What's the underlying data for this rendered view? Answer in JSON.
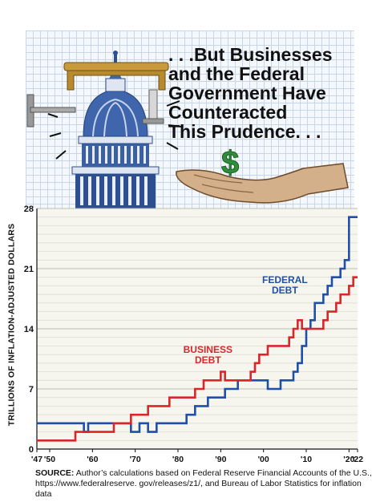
{
  "headline": {
    "lines": [
      ". . .But Businesses",
      "and the Federal",
      "Government Have",
      "Counteracted",
      "This Prudence. . ."
    ]
  },
  "illustration": {
    "icons": [
      "capitol-dome-icon",
      "c-clamp-icon",
      "dollar-sign-icon",
      "open-hand-icon"
    ],
    "dollar_symbol": "$"
  },
  "chart_data": {
    "type": "line",
    "title": "",
    "ylabel": "TRILLIONS OF INFLATION-ADJUSTED DOLLARS",
    "xlabel": "",
    "xlim": [
      1947,
      2022
    ],
    "ylim": [
      0,
      28
    ],
    "yticks": [
      0,
      7,
      14,
      21,
      28
    ],
    "xtick_labels": [
      {
        "value": 1947,
        "label": "'47"
      },
      {
        "value": 1950,
        "label": "'50"
      },
      {
        "value": 1960,
        "label": "'60"
      },
      {
        "value": 1970,
        "label": "'70"
      },
      {
        "value": 1980,
        "label": "'80"
      },
      {
        "value": 1990,
        "label": "'90"
      },
      {
        "value": 2000,
        "label": "'00"
      },
      {
        "value": 2010,
        "label": "'10"
      },
      {
        "value": 2020,
        "label": "'20"
      },
      {
        "value": 2022,
        "label": "'22"
      }
    ],
    "grid": true,
    "series": [
      {
        "name": "FEDERAL DEBT",
        "color": "#1f4fa8",
        "x": [
          1947,
          1948,
          1949,
          1950,
          1951,
          1952,
          1953,
          1954,
          1955,
          1956,
          1957,
          1958,
          1959,
          1960,
          1961,
          1962,
          1963,
          1964,
          1965,
          1966,
          1967,
          1968,
          1969,
          1970,
          1971,
          1972,
          1973,
          1974,
          1975,
          1976,
          1977,
          1978,
          1979,
          1980,
          1981,
          1982,
          1983,
          1984,
          1985,
          1986,
          1987,
          1988,
          1989,
          1990,
          1991,
          1992,
          1993,
          1994,
          1995,
          1996,
          1997,
          1998,
          1999,
          2000,
          2001,
          2002,
          2003,
          2004,
          2005,
          2006,
          2007,
          2008,
          2009,
          2010,
          2011,
          2012,
          2013,
          2014,
          2015,
          2016,
          2017,
          2018,
          2019,
          2020,
          2021,
          2022
        ],
        "values": [
          3,
          3,
          3,
          3,
          3,
          3,
          3,
          3,
          3,
          3,
          3,
          2,
          3,
          3,
          3,
          3,
          3,
          3,
          3,
          3,
          3,
          3,
          2,
          2,
          3,
          3,
          2,
          2,
          3,
          3,
          3,
          3,
          3,
          3,
          3,
          4,
          4,
          5,
          5,
          5,
          6,
          6,
          6,
          6,
          7,
          7,
          7,
          8,
          8,
          8,
          8,
          8,
          8,
          8,
          7,
          7,
          7,
          8,
          8,
          8,
          9,
          10,
          12,
          14,
          15,
          17,
          17,
          18,
          19,
          20,
          20,
          21,
          22,
          27,
          27,
          27
        ]
      },
      {
        "name": "BUSINESS DEBT",
        "color": "#d9262b",
        "x": [
          1947,
          1948,
          1949,
          1950,
          1951,
          1952,
          1953,
          1954,
          1955,
          1956,
          1957,
          1958,
          1959,
          1960,
          1961,
          1962,
          1963,
          1964,
          1965,
          1966,
          1967,
          1968,
          1969,
          1970,
          1971,
          1972,
          1973,
          1974,
          1975,
          1976,
          1977,
          1978,
          1979,
          1980,
          1981,
          1982,
          1983,
          1984,
          1985,
          1986,
          1987,
          1988,
          1989,
          1990,
          1991,
          1992,
          1993,
          1994,
          1995,
          1996,
          1997,
          1998,
          1999,
          2000,
          2001,
          2002,
          2003,
          2004,
          2005,
          2006,
          2007,
          2008,
          2009,
          2010,
          2011,
          2012,
          2013,
          2014,
          2015,
          2016,
          2017,
          2018,
          2019,
          2020,
          2021,
          2022
        ],
        "values": [
          1,
          1,
          1,
          1,
          1,
          1,
          1,
          1,
          1,
          2,
          2,
          2,
          2,
          2,
          2,
          2,
          2,
          2,
          3,
          3,
          3,
          3,
          4,
          4,
          4,
          4,
          5,
          5,
          5,
          5,
          5,
          6,
          6,
          6,
          6,
          6,
          6,
          7,
          7,
          8,
          8,
          8,
          8,
          9,
          8,
          8,
          8,
          8,
          8,
          8,
          9,
          10,
          11,
          11,
          12,
          12,
          12,
          12,
          12,
          13,
          14,
          15,
          14,
          14,
          14,
          14,
          14,
          15,
          16,
          16,
          17,
          18,
          18,
          19,
          20,
          20
        ]
      }
    ],
    "annotations": [
      {
        "text_lines": [
          "FEDERAL",
          "DEBT"
        ],
        "series": "FEDERAL DEBT"
      },
      {
        "text_lines": [
          "BUSINESS",
          "DEBT"
        ],
        "series": "BUSINESS DEBT"
      }
    ]
  },
  "source": {
    "label": "SOURCE:",
    "text": " Author’s calculations based on Federal Reserve Financial Accounts of the U.S., https://www.federalreserve. gov/releases/z1/, and Bureau of Labor Statistics for inflation data"
  }
}
